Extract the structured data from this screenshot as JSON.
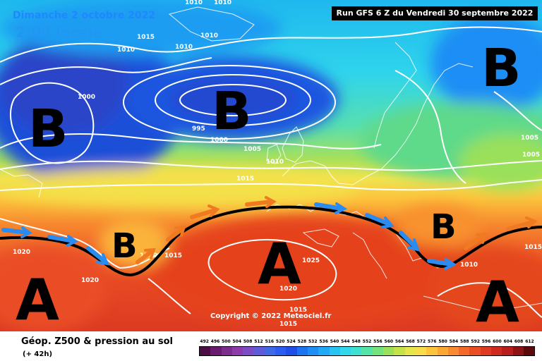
{
  "header": {
    "date": "Dimanche 2 octobre 2022",
    "time": "2:00 locale",
    "run": "Run GFS 6 Z du Vendredi 30 septembre 2022"
  },
  "copyright": "Copyright © 2022 Meteociel.fr",
  "footer": {
    "title": "Géop. Z500 & pression au sol",
    "subtitle": "(+ 42h)"
  },
  "pressure_systems": [
    {
      "label": "B",
      "type": "low"
    },
    {
      "label": "B",
      "type": "low"
    },
    {
      "label": "B",
      "type": "low"
    },
    {
      "label": "B",
      "type": "low"
    },
    {
      "label": "B",
      "type": "low"
    },
    {
      "label": "A",
      "type": "high"
    },
    {
      "label": "A",
      "type": "high"
    },
    {
      "label": "A",
      "type": "high"
    }
  ],
  "isobar_labels": [
    "1010",
    "1010",
    "1015",
    "1010",
    "1010",
    "1010",
    "1000",
    "995",
    "1000",
    "1005",
    "1010",
    "1015",
    "1005",
    "1005",
    "1020",
    "1020",
    "1010",
    "1015",
    "1025",
    "1020",
    "1015",
    "1015",
    "1010",
    "1015"
  ],
  "scale": {
    "labels": [
      "492",
      "496",
      "500",
      "504",
      "508",
      "512",
      "516",
      "520",
      "524",
      "528",
      "532",
      "536",
      "540",
      "544",
      "548",
      "552",
      "556",
      "560",
      "564",
      "568",
      "572",
      "576",
      "580",
      "584",
      "588",
      "592",
      "596",
      "600",
      "604",
      "608",
      "612"
    ],
    "colors": [
      "#4b0d44",
      "#6a1b6e",
      "#7e2b8e",
      "#8d3aaa",
      "#7b4cc4",
      "#5d5bd8",
      "#3e6ae6",
      "#2a5df0",
      "#1f4fe8",
      "#1d74f0",
      "#1f8ef5",
      "#22a9f5",
      "#28c3f2",
      "#30d8ec",
      "#3fe0cf",
      "#55e3a8",
      "#76e27c",
      "#9ae05a",
      "#c4e24a",
      "#e6e64c",
      "#f8dc4a",
      "#fcc43c",
      "#fba736",
      "#f88a30",
      "#f26a2a",
      "#ea4e25",
      "#df3a22",
      "#cf2a20",
      "#b81e1c",
      "#8c1414",
      "#5a0a0a"
    ]
  },
  "colors": {
    "front_line": "#000000",
    "front_arrow_blue": "#2a8cf0",
    "front_arrow_orange": "#f07a20",
    "isobar": "#ffffff"
  }
}
